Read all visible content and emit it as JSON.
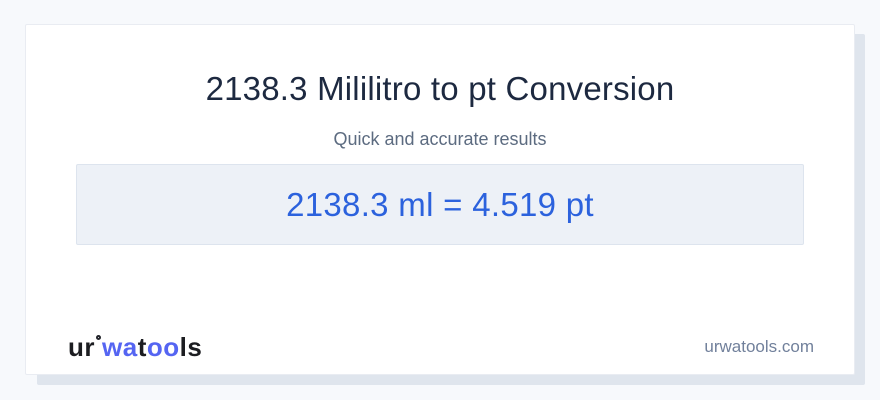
{
  "page": {
    "title": "2138.3 Mililitro to pt Conversion",
    "subtitle": "Quick and accurate results",
    "result_text": "2138.3 ml = 4.519 pt"
  },
  "conversion": {
    "input_value": "2138.3",
    "input_unit": "ml",
    "output_value": "4.519",
    "output_unit": "pt"
  },
  "footer": {
    "logo": {
      "seg1": "ur",
      "seg2": "wa",
      "seg3": "t",
      "seg4": "oo",
      "seg5": "ls"
    },
    "website": "urwatools.com"
  },
  "colors": {
    "page_background": "#f7f9fc",
    "card_background": "#ffffff",
    "shadow_rect": "#dfe5ed",
    "result_box_background": "#edf1f7",
    "title_dark": "#1d2940",
    "subtitle_gray": "#5c6b80",
    "result_blue": "#2c62dd",
    "logo_blue": "#5565f2",
    "logo_dark": "#1c1d21",
    "website_gray": "#71809b"
  }
}
